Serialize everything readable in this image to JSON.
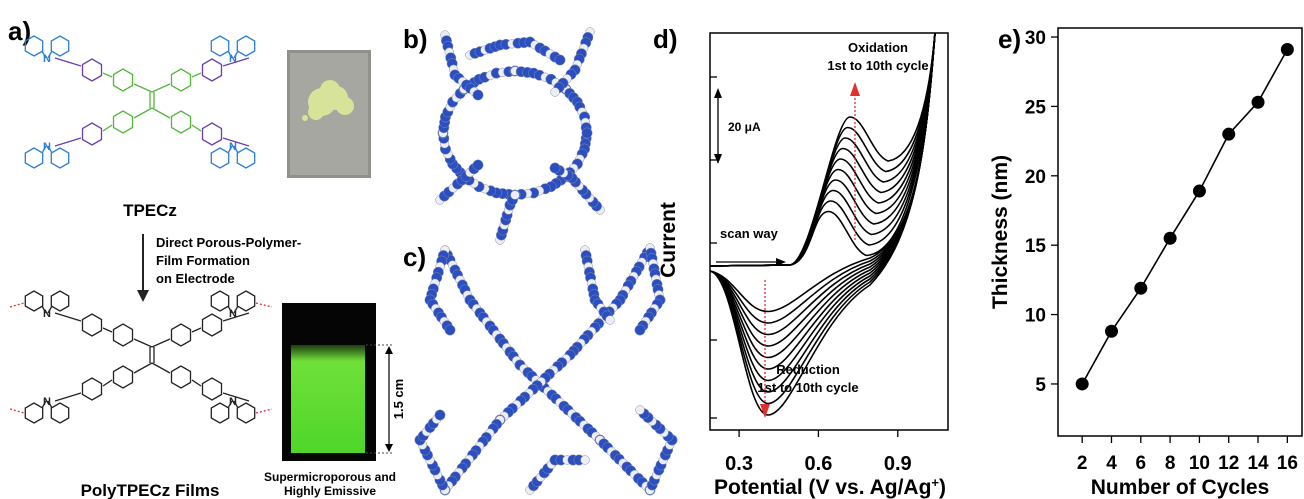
{
  "figure": {
    "a": {
      "label": "a)",
      "atom_label": "N",
      "monomer_name": "TPECz",
      "process": [
        "Direct Porous-Polymer-",
        "Film Formation",
        "on Electrode"
      ],
      "polymer_name": "PolyTPECz Films",
      "photo_caption": [
        "Supermicroporous and",
        "Highly Emissive"
      ],
      "scale_bar": "1.5 cm"
    },
    "b": {
      "label": "b)"
    },
    "c": {
      "label": "c)"
    },
    "d": {
      "label": "d)"
    },
    "e": {
      "label": "e)"
    }
  },
  "chart_data": [
    {
      "type": "cv",
      "xlabel": "Potential (V vs. Ag/Ag",
      "xlabel_sup": "+",
      "xlabel_end": ")",
      "ylabel": "Current",
      "xlim": [
        0.19,
        1.09
      ],
      "xticks": [
        0.3,
        0.6,
        0.9
      ],
      "annotations": {
        "oxidation": [
          "Oxidation",
          "1st to 10th cycle"
        ],
        "reduction": [
          "Reduction",
          "1st to 10th cycle"
        ],
        "scale": "20 μA",
        "scan": "scan way"
      }
    },
    {
      "type": "line",
      "xlabel": "Number of Cycles",
      "ylabel": "Thickness (nm)",
      "x": [
        2,
        4,
        6,
        8,
        10,
        12,
        14,
        16
      ],
      "series": [
        {
          "color": "#000000",
          "values": [
            5.0,
            8.8,
            11.9,
            15.5,
            18.9,
            23.0,
            25.3,
            29.1
          ]
        }
      ],
      "xlim": [
        0.35,
        17
      ],
      "ylim": [
        1.25,
        30.65
      ],
      "xticks": [
        2,
        4,
        6,
        8,
        10,
        12,
        14,
        16
      ],
      "yticks": [
        5,
        10,
        15,
        20,
        25,
        30
      ]
    }
  ]
}
